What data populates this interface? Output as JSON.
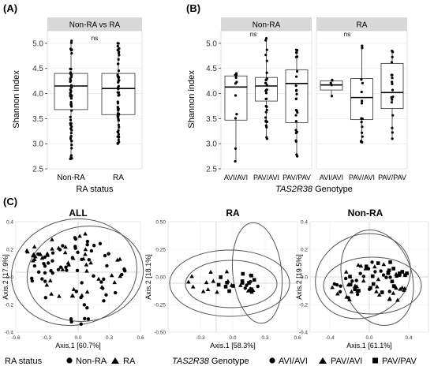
{
  "panel_labels": {
    "A": "(A)",
    "B": "(B)",
    "C": "(C)"
  },
  "chart_data": [
    {
      "id": "A",
      "type": "box",
      "strip_title": "Non-RA vs RA",
      "categories": [
        "Non-RA",
        "RA"
      ],
      "xlabel": "RA status",
      "ylabel": "Shannon index",
      "ylim": [
        2.5,
        5.25
      ],
      "yticks": [
        "2.5",
        "3.0",
        "3.5",
        "4.0",
        "4.5",
        "5.0"
      ],
      "significance": "ns",
      "boxes": [
        {
          "name": "Non-RA",
          "min": 2.7,
          "q1": 3.68,
          "median": 4.15,
          "q3": 4.4,
          "max": 5.05
        },
        {
          "name": "RA",
          "min": 3.0,
          "q1": 3.58,
          "median": 4.1,
          "q3": 4.4,
          "max": 5.0
        }
      ]
    },
    {
      "id": "B",
      "type": "box",
      "facets": [
        "Non-RA",
        "RA"
      ],
      "categories": [
        "AVI/AVI",
        "PAV/AVI",
        "PAV/PAV"
      ],
      "xlabel_italic": "TAS2R38",
      "xlabel_rest": " Genotype",
      "ylabel": "Shannon index",
      "ylim": [
        2.5,
        5.25
      ],
      "yticks": [
        "2.5",
        "3.0",
        "3.5",
        "4.0",
        "4.5",
        "5.0"
      ],
      "significance": [
        "ns",
        "ns"
      ],
      "boxes": [
        {
          "facet": "Non-RA",
          "name": "AVI/AVI",
          "min": 2.65,
          "q1": 3.47,
          "median": 4.13,
          "q3": 4.35,
          "max": 4.4
        },
        {
          "facet": "Non-RA",
          "name": "PAV/AVI",
          "min": 3.1,
          "q1": 3.85,
          "median": 4.15,
          "q3": 4.32,
          "max": 5.1
        },
        {
          "facet": "Non-RA",
          "name": "PAV/PAV",
          "min": 2.75,
          "q1": 3.42,
          "median": 4.2,
          "q3": 4.47,
          "max": 4.87
        },
        {
          "facet": "RA",
          "name": "AVI/AVI",
          "min": 3.95,
          "q1": 4.07,
          "median": 4.17,
          "q3": 4.25,
          "max": 4.27
        },
        {
          "facet": "RA",
          "name": "PAV/AVI",
          "min": 3.03,
          "q1": 3.48,
          "median": 3.92,
          "q3": 4.3,
          "max": 4.95
        },
        {
          "facet": "RA",
          "name": "PAV/PAV",
          "min": 3.1,
          "q1": 3.7,
          "median": 4.02,
          "q3": 4.6,
          "max": 4.85
        }
      ]
    },
    {
      "id": "C1",
      "type": "scatter",
      "title": "ALL",
      "xlabel": "Axis.1 [60.7%]",
      "ylabel": "Axis.2 [17.9%]",
      "xlim": [
        -0.6,
        0.6
      ],
      "ylim": [
        -0.4,
        0.4
      ],
      "xticks": [
        "-0.6",
        "-0.3",
        "0.0",
        "0.3",
        "0.6"
      ],
      "yticks": [
        "-0.4",
        "-0.2",
        "0.0",
        "0.2",
        "0.4"
      ],
      "series": [
        {
          "name": "Non-RA",
          "marker": "circle"
        },
        {
          "name": "RA",
          "marker": "triangle"
        }
      ]
    },
    {
      "id": "C2",
      "type": "scatter",
      "title": "RA",
      "xlabel": "Axis.1 [58.3%]",
      "ylabel": "Axis.2 [18.1%]",
      "xlim": [
        -0.6,
        0.6
      ],
      "ylim": [
        -0.5,
        0.5
      ],
      "xticks": [
        "-0.3",
        "0.0",
        "0.3",
        "0.6"
      ],
      "yticks": [
        "-0.50",
        "-0.25",
        "0.00",
        "0.25",
        "0.50"
      ],
      "series": [
        {
          "name": "AVI/AVI",
          "marker": "circle"
        },
        {
          "name": "PAV/AVI",
          "marker": "triangle"
        },
        {
          "name": "PAV/PAV",
          "marker": "square"
        }
      ]
    },
    {
      "id": "C3",
      "type": "scatter",
      "title": "Non-RA",
      "xlabel": "Axis.1 [61.1%]",
      "ylabel": "Axis.2 [19.5%]",
      "xlim": [
        -0.6,
        0.6
      ],
      "ylim": [
        -0.4,
        0.4
      ],
      "xticks": [
        "-0.4",
        "0.0",
        "0.4"
      ],
      "yticks": [
        "-0.4",
        "-0.2",
        "0.0",
        "0.2",
        "0.4"
      ],
      "series": [
        {
          "name": "AVI/AVI",
          "marker": "circle"
        },
        {
          "name": "PAV/AVI",
          "marker": "triangle"
        },
        {
          "name": "PAV/PAV",
          "marker": "square"
        }
      ]
    }
  ],
  "legends": {
    "ra_status": {
      "title": "RA status",
      "items": [
        "Non-RA",
        "RA"
      ]
    },
    "genotype": {
      "title_italic": "TAS2R38",
      "title_rest": " Genotype",
      "items": [
        "AVI/AVI",
        "PAV/AVI",
        "PAV/PAV"
      ]
    }
  },
  "colors": {
    "strip": "#d9d9d9",
    "grid": "#ebebeb",
    "points": "#000000",
    "ellipse": "#555555"
  }
}
